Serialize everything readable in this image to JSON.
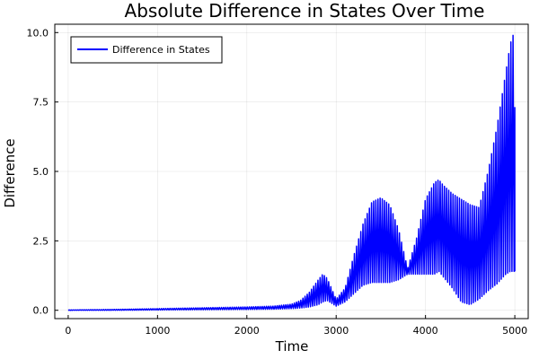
{
  "chart_data": {
    "type": "line",
    "title": "Absolute Difference in States Over Time",
    "xlabel": "Time",
    "ylabel": "Difference",
    "xlim": [
      -150,
      5150
    ],
    "ylim": [
      -0.3,
      10.3
    ],
    "x_ticks": [
      0,
      1000,
      2000,
      3000,
      4000,
      5000
    ],
    "x_tick_labels": [
      "0",
      "1000",
      "2000",
      "3000",
      "4000",
      "5000"
    ],
    "y_ticks": [
      0,
      2.5,
      5,
      7.5,
      10
    ],
    "y_tick_labels": [
      "0.0",
      "2.5",
      "5.0",
      "7.5",
      "10.0"
    ],
    "grid": true,
    "legend_position": "top-left",
    "line_color": "#0000ff",
    "series": [
      {
        "name": "Difference in States",
        "color": "#0000ff",
        "envelope": {
          "x": [
            0,
            500,
            1000,
            1500,
            2000,
            2300,
            2500,
            2600,
            2700,
            2800,
            2850,
            2900,
            3000,
            3100,
            3200,
            3300,
            3400,
            3500,
            3600,
            3700,
            3800,
            3900,
            4000,
            4100,
            4150,
            4200,
            4300,
            4400,
            4500,
            4600,
            4700,
            4800,
            4900,
            4950,
            4980,
            5000
          ],
          "upper": [
            0.01,
            0.03,
            0.06,
            0.09,
            0.12,
            0.15,
            0.22,
            0.35,
            0.65,
            1.1,
            1.3,
            1.15,
            0.4,
            0.8,
            2.0,
            3.1,
            3.9,
            4.05,
            3.8,
            2.9,
            1.5,
            2.6,
            4.0,
            4.6,
            4.7,
            4.5,
            4.2,
            4.0,
            3.8,
            3.7,
            5.0,
            6.6,
            8.6,
            9.6,
            9.9,
            7.3
          ],
          "lower": [
            0.0,
            0.0,
            0.01,
            0.02,
            0.03,
            0.04,
            0.06,
            0.08,
            0.12,
            0.2,
            0.3,
            0.35,
            0.15,
            0.3,
            0.6,
            0.9,
            1.0,
            1.0,
            1.0,
            1.1,
            1.3,
            1.3,
            1.3,
            1.3,
            1.4,
            1.2,
            0.8,
            0.3,
            0.2,
            0.4,
            0.7,
            0.95,
            1.3,
            1.4,
            1.4,
            1.4
          ]
        }
      }
    ]
  }
}
